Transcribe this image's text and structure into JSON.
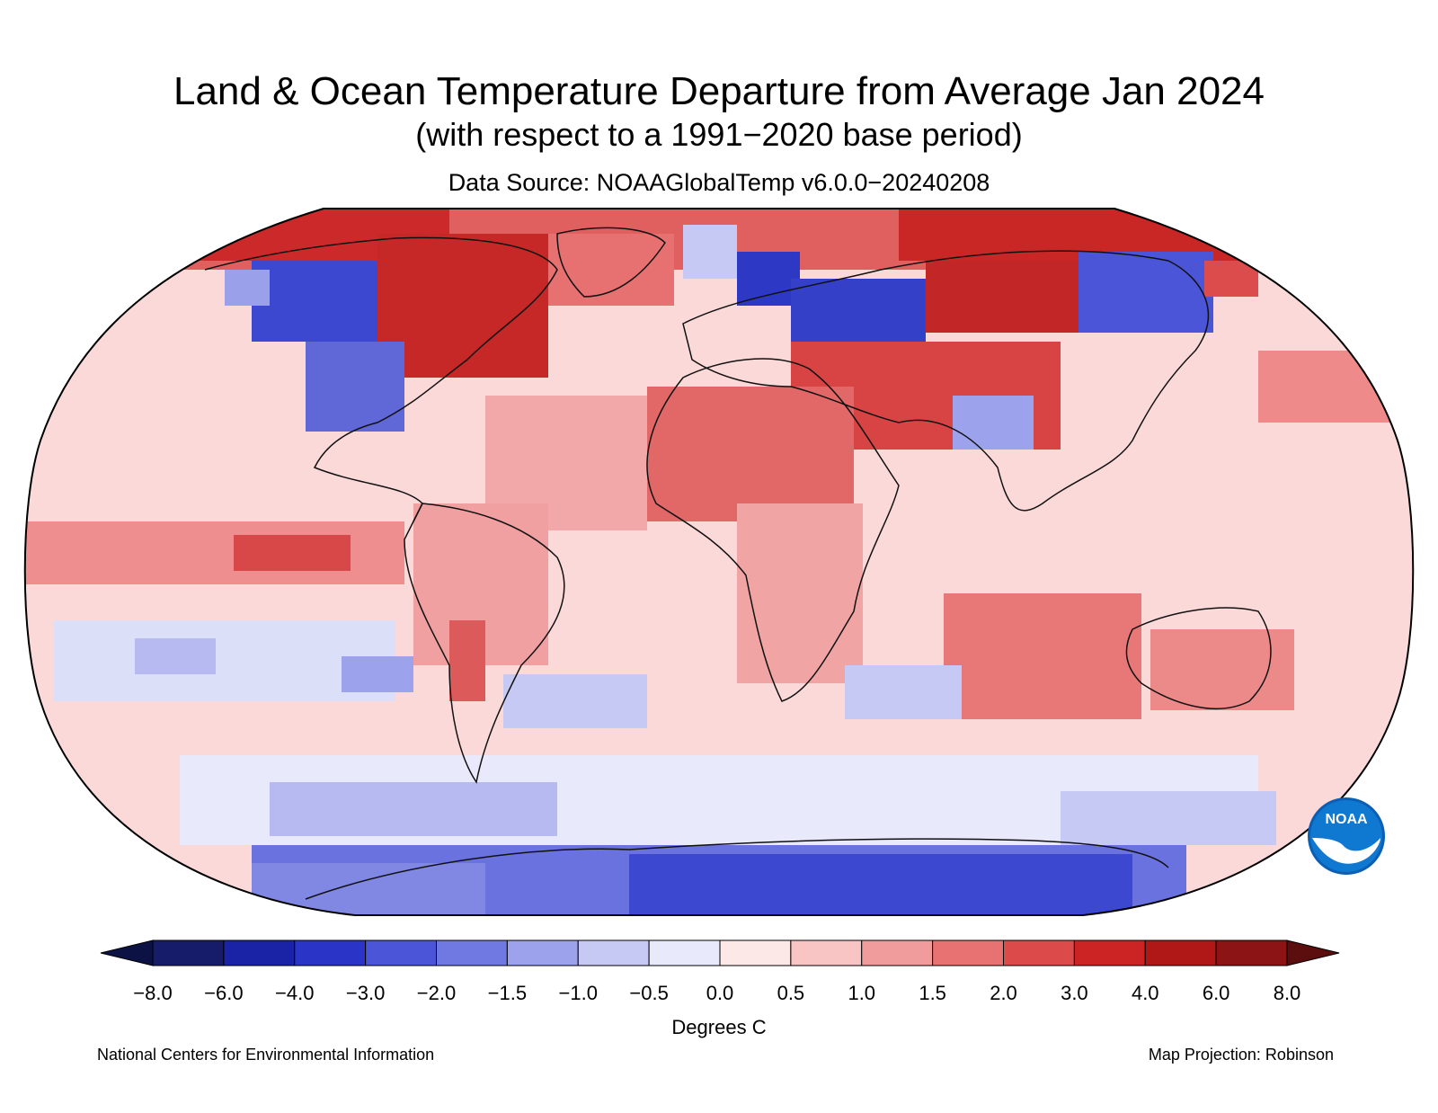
{
  "title": "Land & Ocean Temperature Departure from Average Jan 2024",
  "subtitle": "(with respect to a 1991−2020 base period)",
  "source": "Data Source: NOAAGlobalTemp v6.0.0−20240208",
  "units": "Degrees C",
  "footer_left": "National Centers for Environmental Information",
  "footer_right": "Map Projection: Robinson",
  "logo": {
    "text": "NOAA",
    "icon": "noaa-logo"
  },
  "colorbar": {
    "labels": [
      "−8.0",
      "−6.0",
      "−4.0",
      "−3.0",
      "−2.0",
      "−1.5",
      "−1.0",
      "−0.5",
      "0.0",
      "0.5",
      "1.0",
      "1.5",
      "2.0",
      "3.0",
      "4.0",
      "6.0",
      "8.0"
    ],
    "colors": [
      "#171c6a",
      "#1a22a6",
      "#2a35c8",
      "#4a55d8",
      "#7078e2",
      "#9da2ec",
      "#c6c9f4",
      "#e8e9fb",
      "#fde8e8",
      "#f8c4c4",
      "#f19c9c",
      "#e87272",
      "#dc4a4a",
      "#cc2424",
      "#b01818",
      "#8c1414"
    ],
    "arrow_low": "#0d1245",
    "arrow_high": "#5c0e0e"
  }
}
